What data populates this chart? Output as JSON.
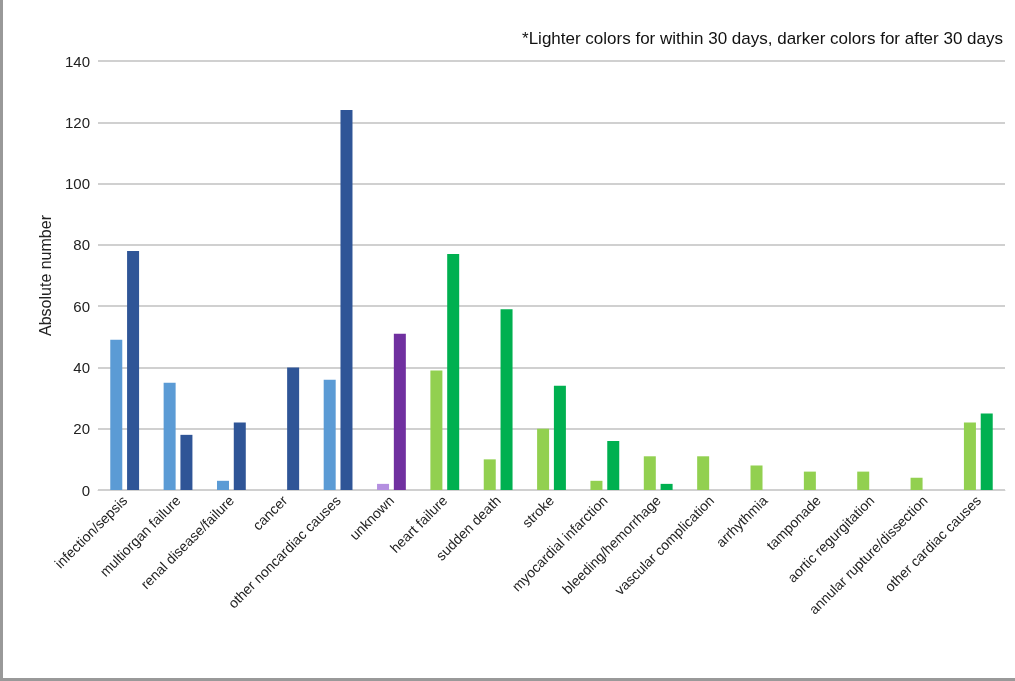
{
  "chart_data": {
    "type": "bar",
    "ylabel": "Absolute number",
    "annotations": [
      "*Lighter colors for within 30 days, darker colors for after 30 days"
    ],
    "categories": [
      "infection/sepsis",
      "multiorgan failure",
      "renal disease/failure",
      "cancer",
      "other noncardiac causes",
      "unknown",
      "heart failure",
      "sudden death",
      "stroke",
      "myocardial infarction",
      "bleeding/hemorrhage",
      "vascular complication",
      "arrhythmia",
      "tamponade",
      "aortic regurgitation",
      "annular rupture/dissection",
      "other cardiac causes"
    ],
    "series": [
      {
        "colors": [
          "#5b9bd5",
          "#5b9bd5",
          "#5b9bd5",
          "#5b9bd5",
          "#5b9bd5",
          "#b48fe0",
          "#92d050",
          "#92d050",
          "#92d050",
          "#92d050",
          "#92d050",
          "#92d050",
          "#92d050",
          "#92d050",
          "#92d050",
          "#92d050",
          "#92d050"
        ],
        "values": [
          49,
          35,
          3,
          0,
          36,
          2,
          39,
          10,
          20,
          3,
          11,
          11,
          8,
          6,
          6,
          4,
          22
        ]
      },
      {
        "colors": [
          "#2f5597",
          "#2f5597",
          "#2f5597",
          "#2f5597",
          "#2f5597",
          "#7030a0",
          "#00b050",
          "#00b050",
          "#00b050",
          "#00b050",
          "#00b050",
          "#00b050",
          "#00b050",
          "#00b050",
          "#00b050",
          "#00b050",
          "#00b050"
        ],
        "values": [
          78,
          18,
          22,
          40,
          124,
          51,
          77,
          59,
          34,
          16,
          2,
          0,
          0,
          0,
          0,
          0,
          25
        ]
      }
    ],
    "ylim": [
      0,
      140
    ],
    "yticks": [
      0,
      20,
      40,
      60,
      80,
      100,
      120,
      140
    ],
    "grid": "y"
  }
}
